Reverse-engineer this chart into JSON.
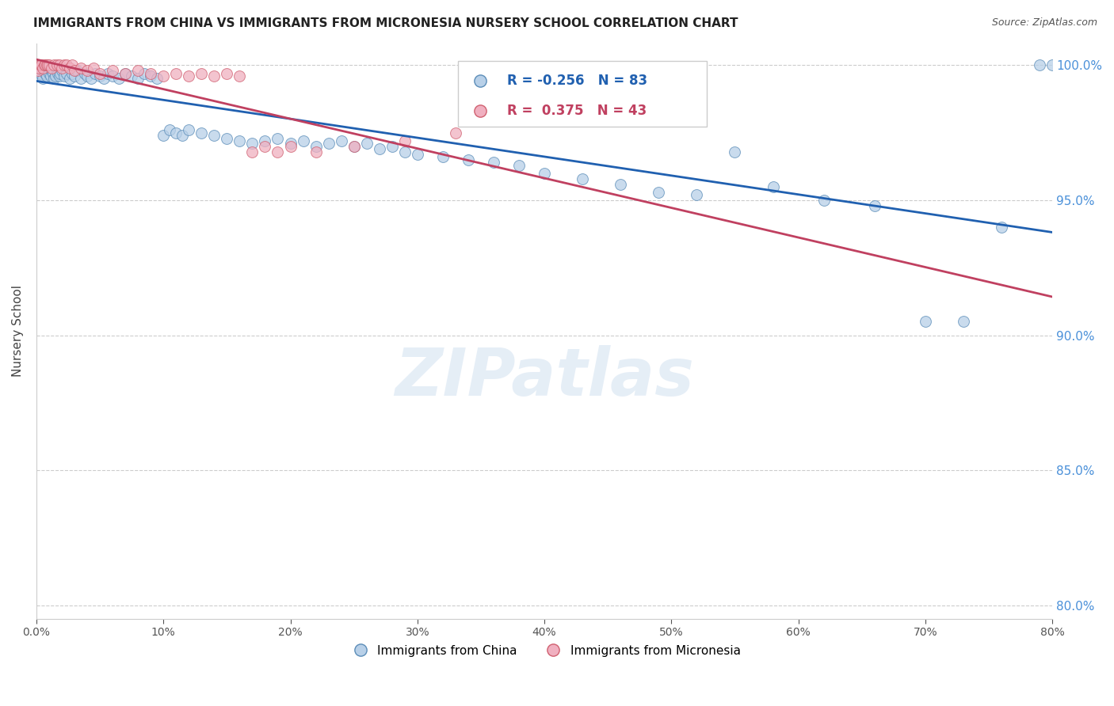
{
  "title": "IMMIGRANTS FROM CHINA VS IMMIGRANTS FROM MICRONESIA NURSERY SCHOOL CORRELATION CHART",
  "source": "Source: ZipAtlas.com",
  "ylabel": "Nursery School",
  "legend_china": "Immigrants from China",
  "legend_micronesia": "Immigrants from Micronesia",
  "R_china": -0.256,
  "N_china": 83,
  "R_micronesia": 0.375,
  "N_micronesia": 43,
  "color_china_fill": "#b8d0e8",
  "color_china_edge": "#5b8db8",
  "color_china_line": "#2060b0",
  "color_micronesia_fill": "#f0b0c0",
  "color_micronesia_edge": "#d06070",
  "color_micronesia_line": "#c04060",
  "xmin": 0.0,
  "xmax": 0.8,
  "ymin": 0.795,
  "ymax": 1.008,
  "yticks": [
    0.8,
    0.85,
    0.9,
    0.95,
    1.0
  ],
  "xticks": [
    0.0,
    0.1,
    0.2,
    0.3,
    0.4,
    0.5,
    0.6,
    0.7,
    0.8
  ],
  "watermark": "ZIPatlas",
  "right_axis_color": "#4a90d9",
  "china_x": [
    0.001,
    0.002,
    0.003,
    0.004,
    0.005,
    0.006,
    0.007,
    0.008,
    0.009,
    0.01,
    0.011,
    0.012,
    0.013,
    0.014,
    0.015,
    0.016,
    0.017,
    0.018,
    0.019,
    0.02,
    0.022,
    0.024,
    0.026,
    0.028,
    0.03,
    0.032,
    0.035,
    0.038,
    0.04,
    0.043,
    0.046,
    0.05,
    0.053,
    0.056,
    0.06,
    0.065,
    0.07,
    0.075,
    0.08,
    0.085,
    0.09,
    0.095,
    0.1,
    0.105,
    0.11,
    0.115,
    0.12,
    0.13,
    0.14,
    0.15,
    0.16,
    0.17,
    0.18,
    0.19,
    0.2,
    0.21,
    0.22,
    0.23,
    0.24,
    0.25,
    0.26,
    0.27,
    0.28,
    0.29,
    0.3,
    0.32,
    0.34,
    0.36,
    0.38,
    0.4,
    0.43,
    0.46,
    0.49,
    0.52,
    0.55,
    0.58,
    0.62,
    0.66,
    0.7,
    0.73,
    0.76,
    0.79,
    0.8
  ],
  "china_y": [
    0.998,
    0.996,
    0.997,
    0.999,
    0.995,
    0.998,
    0.997,
    0.996,
    0.998,
    0.997,
    0.996,
    0.998,
    0.997,
    0.995,
    0.996,
    0.998,
    0.997,
    0.996,
    0.997,
    0.998,
    0.996,
    0.997,
    0.995,
    0.997,
    0.996,
    0.998,
    0.995,
    0.997,
    0.996,
    0.995,
    0.997,
    0.996,
    0.995,
    0.997,
    0.996,
    0.995,
    0.997,
    0.996,
    0.995,
    0.997,
    0.996,
    0.995,
    0.974,
    0.976,
    0.975,
    0.974,
    0.976,
    0.975,
    0.974,
    0.973,
    0.972,
    0.971,
    0.972,
    0.973,
    0.971,
    0.972,
    0.97,
    0.971,
    0.972,
    0.97,
    0.971,
    0.969,
    0.97,
    0.968,
    0.967,
    0.966,
    0.965,
    0.964,
    0.963,
    0.96,
    0.958,
    0.956,
    0.953,
    0.952,
    0.968,
    0.955,
    0.95,
    0.948,
    0.905,
    0.905,
    0.94,
    1.0,
    1.0
  ],
  "micronesia_x": [
    0.001,
    0.002,
    0.003,
    0.004,
    0.005,
    0.006,
    0.007,
    0.008,
    0.009,
    0.01,
    0.012,
    0.014,
    0.016,
    0.018,
    0.02,
    0.022,
    0.024,
    0.026,
    0.028,
    0.03,
    0.035,
    0.04,
    0.045,
    0.05,
    0.06,
    0.07,
    0.08,
    0.09,
    0.1,
    0.11,
    0.12,
    0.13,
    0.14,
    0.15,
    0.16,
    0.17,
    0.18,
    0.19,
    0.2,
    0.22,
    0.25,
    0.29,
    0.33
  ],
  "micronesia_y": [
    0.998,
    0.999,
    1.0,
    1.0,
    0.999,
    1.0,
    1.0,
    1.0,
    1.0,
    1.0,
    0.999,
    1.0,
    1.0,
    1.0,
    0.999,
    1.0,
    1.0,
    0.999,
    1.0,
    0.998,
    0.999,
    0.998,
    0.999,
    0.997,
    0.998,
    0.997,
    0.998,
    0.997,
    0.996,
    0.997,
    0.996,
    0.997,
    0.996,
    0.997,
    0.996,
    0.968,
    0.97,
    0.968,
    0.97,
    0.968,
    0.97,
    0.972,
    0.975
  ]
}
